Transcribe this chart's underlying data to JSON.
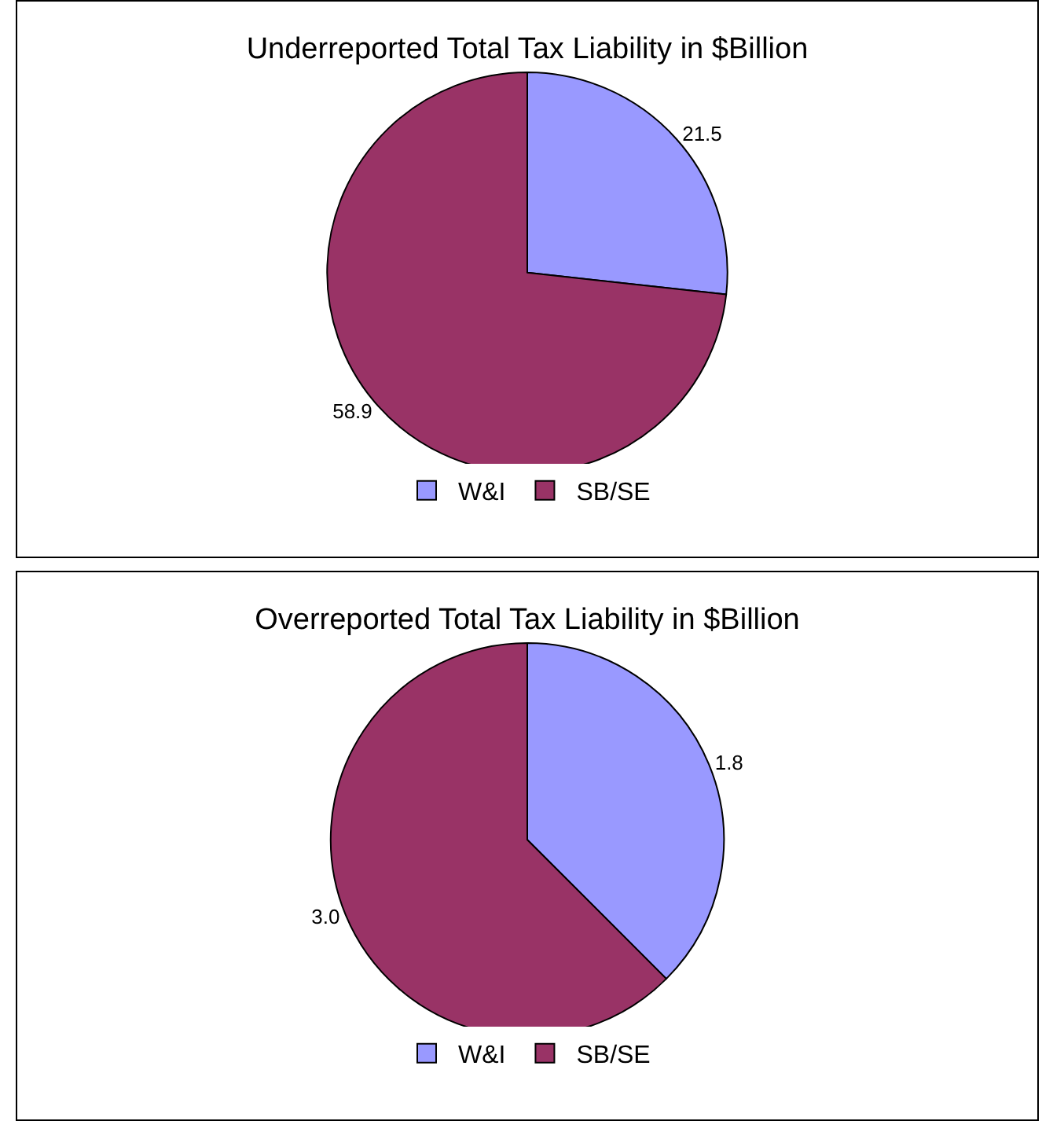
{
  "chart_data": [
    {
      "type": "pie",
      "title": "Underreported Total Tax Liability in $Billion",
      "categories": [
        "W&I",
        "SB/SE"
      ],
      "values": [
        21.5,
        58.9
      ],
      "value_labels": [
        "21.5",
        "58.9"
      ],
      "colors": [
        "#9999ff",
        "#993366"
      ],
      "legend": "bottom"
    },
    {
      "type": "pie",
      "title": "Overreported Total Tax Liability in $Billion",
      "categories": [
        "W&I",
        "SB/SE"
      ],
      "values": [
        1.8,
        3.0
      ],
      "value_labels": [
        "1.8",
        "3.0"
      ],
      "colors": [
        "#9999ff",
        "#993366"
      ],
      "legend": "bottom"
    }
  ]
}
